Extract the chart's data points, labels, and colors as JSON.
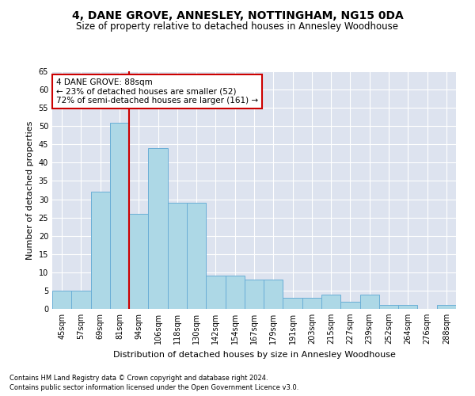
{
  "title1": "4, DANE GROVE, ANNESLEY, NOTTINGHAM, NG15 0DA",
  "title2": "Size of property relative to detached houses in Annesley Woodhouse",
  "xlabel": "Distribution of detached houses by size in Annesley Woodhouse",
  "ylabel": "Number of detached properties",
  "footnote1": "Contains HM Land Registry data © Crown copyright and database right 2024.",
  "footnote2": "Contains public sector information licensed under the Open Government Licence v3.0.",
  "annotation_line1": "4 DANE GROVE: 88sqm",
  "annotation_line2": "← 23% of detached houses are smaller (52)",
  "annotation_line3": "72% of semi-detached houses are larger (161) →",
  "bins": [
    "45sqm",
    "57sqm",
    "69sqm",
    "81sqm",
    "94sqm",
    "106sqm",
    "118sqm",
    "130sqm",
    "142sqm",
    "154sqm",
    "167sqm",
    "179sqm",
    "191sqm",
    "203sqm",
    "215sqm",
    "227sqm",
    "239sqm",
    "252sqm",
    "264sqm",
    "276sqm",
    "288sqm"
  ],
  "bar_values": [
    5,
    5,
    32,
    51,
    26,
    44,
    29,
    29,
    9,
    9,
    8,
    8,
    3,
    3,
    4,
    2,
    4,
    1,
    1,
    0,
    1
  ],
  "bar_color": "#add8e6",
  "bar_edge_color": "#6aaed6",
  "vline_color": "#cc0000",
  "annotation_box_color": "#cc0000",
  "background_color": "#dde3ef",
  "ylim": [
    0,
    65
  ],
  "yticks": [
    0,
    5,
    10,
    15,
    20,
    25,
    30,
    35,
    40,
    45,
    50,
    55,
    60,
    65
  ],
  "vline_x": 3.5,
  "title1_fontsize": 10,
  "title2_fontsize": 8.5,
  "ylabel_fontsize": 8,
  "xlabel_fontsize": 8,
  "tick_fontsize": 7,
  "annot_fontsize": 7.5
}
